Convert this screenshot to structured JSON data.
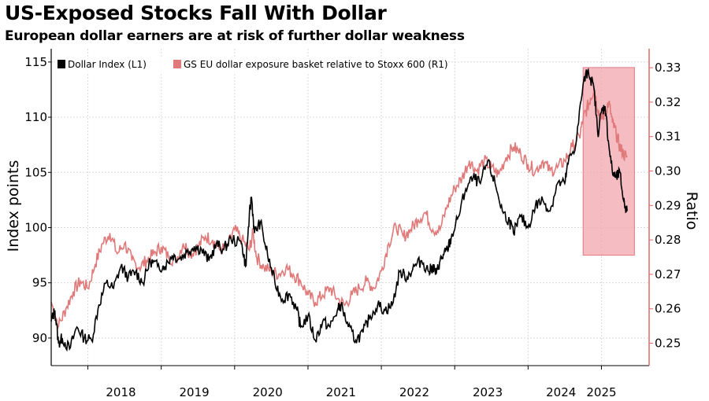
{
  "title": "US-Exposed Stocks Fall With Dollar",
  "subtitle": "European dollar earners are at risk of further dollar weakness",
  "colors": {
    "series1": "#000000",
    "series2": "#e07a7a",
    "highlight_fill": "#f2a6ae",
    "highlight_stroke": "#e07a82",
    "grid": "#d9d9d9",
    "right_axis": "#e06a6a"
  },
  "chart_data": {
    "type": "line",
    "xlabel": "",
    "ylabel": "Index points",
    "y2label": "Ratio",
    "xlim": [
      2017.5,
      2025.65
    ],
    "ylim": [
      87.5,
      116.2
    ],
    "y2lim": [
      0.2435,
      0.3355
    ],
    "x_ticks": [
      "2018",
      "2019",
      "2020",
      "2021",
      "2022",
      "2023",
      "2024",
      "2025"
    ],
    "x_tick_positions": [
      2018.0,
      2019.0,
      2020.0,
      2021.0,
      2022.0,
      2023.0,
      2024.0,
      2025.0
    ],
    "x_label_positions": [
      2018.45,
      2019.45,
      2020.45,
      2021.45,
      2022.45,
      2023.45,
      2024.45,
      2025.0
    ],
    "y_ticks": [
      90,
      95,
      100,
      105,
      110,
      115
    ],
    "y2_ticks": [
      0.25,
      0.26,
      0.27,
      0.28,
      0.29,
      0.3,
      0.31,
      0.32,
      0.33
    ],
    "grid": true,
    "legend_position": "top-left",
    "highlight_region": {
      "x": [
        2024.75,
        2025.45
      ],
      "y": [
        97.5,
        114.5
      ]
    },
    "series": [
      {
        "name": "Dollar Index (L1)",
        "axis": "left",
        "x": [
          2017.5,
          2017.55,
          2017.6,
          2017.65,
          2017.75,
          2017.85,
          2017.95,
          2018.05,
          2018.15,
          2018.25,
          2018.35,
          2018.45,
          2018.55,
          2018.65,
          2018.75,
          2018.85,
          2018.95,
          2019.05,
          2019.15,
          2019.25,
          2019.35,
          2019.45,
          2019.55,
          2019.65,
          2019.75,
          2019.85,
          2019.95,
          2020.1,
          2020.15,
          2020.2,
          2020.23,
          2020.27,
          2020.35,
          2020.45,
          2020.55,
          2020.65,
          2020.75,
          2020.85,
          2020.9,
          2021.0,
          2021.1,
          2021.2,
          2021.3,
          2021.4,
          2021.45,
          2021.55,
          2021.65,
          2021.75,
          2021.85,
          2021.95,
          2022.05,
          2022.15,
          2022.25,
          2022.35,
          2022.45,
          2022.55,
          2022.65,
          2022.7,
          2022.75,
          2022.8,
          2022.85,
          2022.9,
          2022.95,
          2023.05,
          2023.15,
          2023.25,
          2023.35,
          2023.45,
          2023.55,
          2023.65,
          2023.75,
          2023.8,
          2023.9,
          2024.0,
          2024.1,
          2024.2,
          2024.3,
          2024.4,
          2024.5,
          2024.55,
          2024.65,
          2024.75,
          2024.82,
          2024.9,
          2024.95,
          2025.0,
          2025.05,
          2025.1,
          2025.15,
          2025.2,
          2025.25,
          2025.3,
          2025.35
        ],
        "values": [
          91.5,
          92.5,
          89.5,
          90.0,
          89.0,
          91.0,
          90.0,
          89.8,
          93.0,
          95.0,
          94.5,
          96.5,
          95.5,
          96.0,
          95.0,
          97.0,
          96.5,
          96.5,
          97.5,
          97.2,
          97.8,
          98.3,
          98.0,
          97.0,
          98.5,
          98.0,
          99.0,
          98.5,
          96.5,
          101.0,
          102.8,
          99.5,
          100.5,
          97.5,
          95.0,
          93.5,
          94.0,
          92.5,
          91.0,
          92.0,
          89.8,
          91.5,
          91.0,
          92.5,
          93.0,
          91.0,
          89.8,
          90.5,
          92.0,
          93.0,
          92.5,
          93.0,
          96.0,
          95.5,
          96.5,
          97.0,
          96.0,
          96.5,
          95.8,
          97.0,
          97.5,
          98.0,
          99.0,
          101.0,
          103.5,
          104.5,
          104.0,
          106.0,
          104.0,
          101.5,
          100.5,
          99.5,
          101.0,
          100.0,
          102.0,
          102.5,
          101.5,
          104.0,
          104.0,
          106.0,
          107.5,
          113.0,
          114.3,
          112.5,
          108.5,
          110.5,
          111.0,
          107.5,
          105.0,
          104.5,
          105.0,
          102.5,
          101.5
        ],
        "_unused": []
      },
      {
        "name": "GS EU dollar exposure basket relative to Stoxx 600 (R1)",
        "axis": "right",
        "x": [
          2017.5,
          2017.6,
          2017.7,
          2017.8,
          2017.9,
          2018.0,
          2018.1,
          2018.2,
          2018.3,
          2018.4,
          2018.5,
          2018.6,
          2018.7,
          2018.8,
          2018.9,
          2019.0,
          2019.1,
          2019.2,
          2019.3,
          2019.4,
          2019.5,
          2019.6,
          2019.7,
          2019.8,
          2019.9,
          2020.0,
          2020.1,
          2020.2,
          2020.25,
          2020.3,
          2020.4,
          2020.5,
          2020.6,
          2020.7,
          2020.8,
          2020.9,
          2021.0,
          2021.1,
          2021.2,
          2021.3,
          2021.4,
          2021.5,
          2021.6,
          2021.7,
          2021.8,
          2021.9,
          2022.0,
          2022.1,
          2022.2,
          2022.3,
          2022.4,
          2022.5,
          2022.6,
          2022.7,
          2022.8,
          2022.9,
          2023.0,
          2023.1,
          2023.2,
          2023.3,
          2023.4,
          2023.5,
          2023.6,
          2023.7,
          2023.8,
          2023.9,
          2024.0,
          2024.1,
          2024.2,
          2024.3,
          2024.4,
          2024.5,
          2024.6,
          2024.7,
          2024.75,
          2024.8,
          2024.85,
          2024.9,
          2024.95,
          2025.0,
          2025.05,
          2025.1,
          2025.15,
          2025.2,
          2025.25,
          2025.3,
          2025.35
        ],
        "values": [
          0.262,
          0.255,
          0.26,
          0.265,
          0.268,
          0.266,
          0.273,
          0.279,
          0.282,
          0.276,
          0.279,
          0.274,
          0.272,
          0.274,
          0.276,
          0.278,
          0.275,
          0.274,
          0.279,
          0.276,
          0.278,
          0.281,
          0.28,
          0.277,
          0.278,
          0.283,
          0.28,
          0.277,
          0.282,
          0.275,
          0.272,
          0.271,
          0.27,
          0.272,
          0.27,
          0.268,
          0.264,
          0.262,
          0.264,
          0.266,
          0.263,
          0.261,
          0.264,
          0.266,
          0.268,
          0.266,
          0.271,
          0.279,
          0.284,
          0.281,
          0.283,
          0.286,
          0.288,
          0.283,
          0.283,
          0.29,
          0.295,
          0.298,
          0.303,
          0.3,
          0.303,
          0.301,
          0.299,
          0.304,
          0.307,
          0.305,
          0.302,
          0.3,
          0.303,
          0.3,
          0.301,
          0.303,
          0.307,
          0.31,
          0.315,
          0.318,
          0.321,
          0.324,
          0.318,
          0.315,
          0.317,
          0.32,
          0.314,
          0.311,
          0.307,
          0.305,
          0.304
        ]
      }
    ]
  }
}
